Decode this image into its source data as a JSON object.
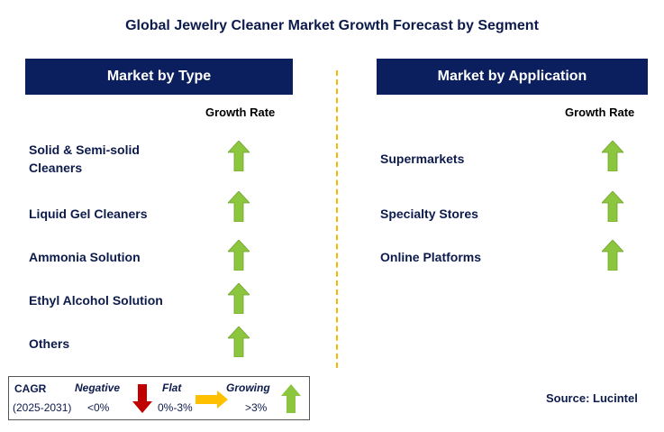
{
  "title": "Global Jewelry Cleaner Market Growth Forecast by Segment",
  "type_panel": {
    "header": "Market by Type",
    "growth_label": "Growth Rate",
    "items": [
      {
        "label_lines": [
          "Solid & Semi-solid",
          "Cleaners"
        ],
        "trend": "growing"
      },
      {
        "label_lines": [
          "Liquid Gel Cleaners"
        ],
        "trend": "growing"
      },
      {
        "label_lines": [
          "Ammonia Solution"
        ],
        "trend": "growing"
      },
      {
        "label_lines": [
          "Ethyl Alcohol Solution"
        ],
        "trend": "growing"
      },
      {
        "label_lines": [
          "Others"
        ],
        "trend": "growing"
      }
    ]
  },
  "application_panel": {
    "header": "Market by Application",
    "growth_label": "Growth Rate",
    "items": [
      {
        "label_lines": [
          "Supermarkets"
        ],
        "trend": "growing"
      },
      {
        "label_lines": [
          "Specialty Stores"
        ],
        "trend": "growing"
      },
      {
        "label_lines": [
          "Online Platforms"
        ],
        "trend": "growing"
      }
    ]
  },
  "legend": {
    "cagr_label": "CAGR",
    "period": "(2025-2031)",
    "negative_label": "Negative",
    "negative_range": "<0%",
    "flat_label": "Flat",
    "flat_range": "0%-3%",
    "growing_label": "Growing",
    "growing_range": ">3%"
  },
  "source": "Source: Lucintel",
  "colors": {
    "header_bg": "#0b1f5e",
    "text": "#0d1b4c",
    "growing": "#8cc63f",
    "negative": "#c00000",
    "flat": "#ffc000",
    "divider": "#f5b800"
  },
  "icons": {
    "growing": "arrow-up-icon",
    "negative": "arrow-down-icon",
    "flat": "arrow-right-icon"
  }
}
